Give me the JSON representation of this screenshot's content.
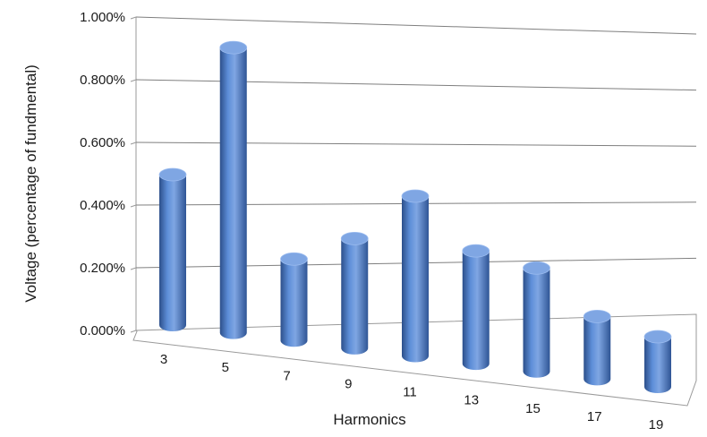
{
  "chart_data": {
    "type": "bar",
    "style": "3d-cylinder",
    "xlabel": "Harmonics",
    "ylabel": "Voltage (percentage of fundmental)",
    "categories": [
      "3",
      "5",
      "7",
      "9",
      "11",
      "13",
      "15",
      "17",
      "19"
    ],
    "values": [
      0.48,
      0.91,
      0.26,
      0.35,
      0.51,
      0.36,
      0.33,
      0.2,
      0.16
    ],
    "ylim": [
      0,
      1.0
    ],
    "y_ticks": [
      "0.000%",
      "0.200%",
      "0.400%",
      "0.600%",
      "0.800%",
      "1.000%"
    ],
    "grid": true,
    "colors": {
      "bar": "#4a7cc9",
      "bar_light": "#7fa6e3",
      "bar_dark": "#2c4f8a",
      "grid": "#7f7f7f"
    }
  }
}
